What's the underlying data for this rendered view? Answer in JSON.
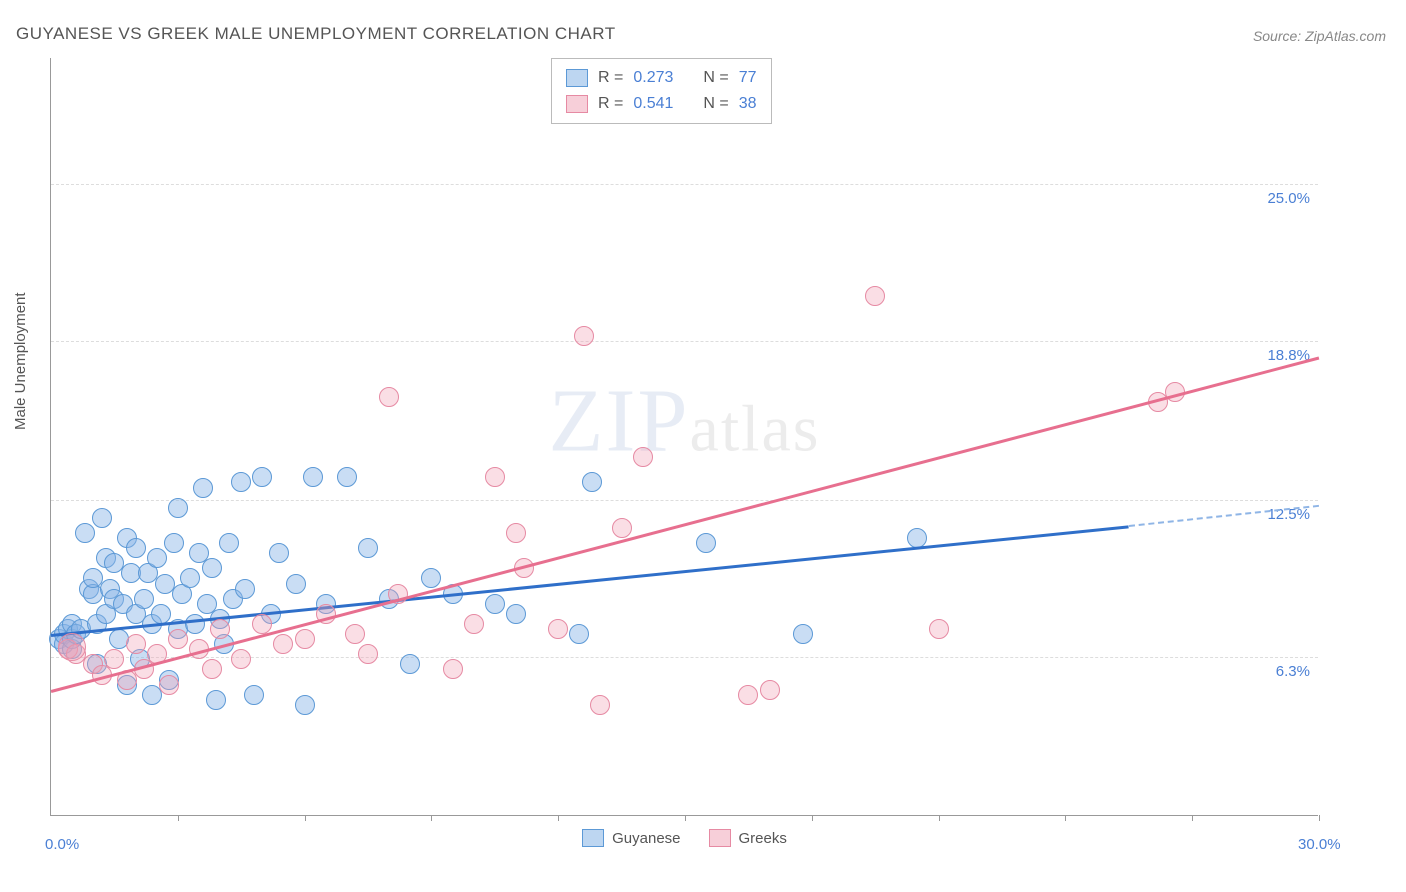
{
  "title": "GUYANESE VS GREEK MALE UNEMPLOYMENT CORRELATION CHART",
  "source_label": "Source:",
  "source_value": "ZipAtlas.com",
  "y_axis_label": "Male Unemployment",
  "watermark_zip": "ZIP",
  "watermark_atlas": "atlas",
  "chart": {
    "type": "scatter",
    "xlim": [
      0,
      30
    ],
    "ylim": [
      0,
      30
    ],
    "x_origin_label": "0.0%",
    "x_max_label": "30.0%",
    "x_ticks": [
      3,
      6,
      9,
      12,
      15,
      18,
      21,
      24,
      27,
      30
    ],
    "y_gridlines": [
      {
        "value": 6.3,
        "label": "6.3%"
      },
      {
        "value": 12.5,
        "label": "12.5%"
      },
      {
        "value": 18.8,
        "label": "18.8%"
      },
      {
        "value": 25.0,
        "label": "25.0%"
      }
    ],
    "background_color": "#ffffff",
    "grid_color": "#dddddd",
    "axis_color": "#999999",
    "tick_label_color": "#4a7fd4",
    "series": [
      {
        "name": "Guyanese",
        "color_fill": "rgba(135,180,230,0.45)",
        "color_stroke": "#5c99d6",
        "marker_size": 20,
        "r": 0.273,
        "n": 77,
        "trend": {
          "x1": 0,
          "y1": 7.2,
          "x2": 25.5,
          "y2": 11.5,
          "color": "#2f6fc9",
          "dashed_extension_to_x": 30,
          "dashed_y": 12.3
        },
        "points": [
          [
            0.2,
            7.0
          ],
          [
            0.3,
            6.8
          ],
          [
            0.3,
            7.2
          ],
          [
            0.4,
            7.4
          ],
          [
            0.5,
            6.6
          ],
          [
            0.5,
            7.0
          ],
          [
            0.5,
            7.6
          ],
          [
            0.6,
            7.2
          ],
          [
            0.7,
            7.4
          ],
          [
            0.8,
            11.2
          ],
          [
            0.9,
            9.0
          ],
          [
            1.0,
            8.8
          ],
          [
            1.0,
            9.4
          ],
          [
            1.1,
            7.6
          ],
          [
            1.1,
            6.0
          ],
          [
            1.2,
            11.8
          ],
          [
            1.3,
            8.0
          ],
          [
            1.3,
            10.2
          ],
          [
            1.4,
            9.0
          ],
          [
            1.5,
            8.6
          ],
          [
            1.5,
            10.0
          ],
          [
            1.6,
            7.0
          ],
          [
            1.7,
            8.4
          ],
          [
            1.8,
            11.0
          ],
          [
            1.8,
            5.2
          ],
          [
            1.9,
            9.6
          ],
          [
            2.0,
            8.0
          ],
          [
            2.0,
            10.6
          ],
          [
            2.1,
            6.2
          ],
          [
            2.2,
            8.6
          ],
          [
            2.3,
            9.6
          ],
          [
            2.4,
            4.8
          ],
          [
            2.4,
            7.6
          ],
          [
            2.5,
            10.2
          ],
          [
            2.6,
            8.0
          ],
          [
            2.7,
            9.2
          ],
          [
            2.8,
            5.4
          ],
          [
            2.9,
            10.8
          ],
          [
            3.0,
            12.2
          ],
          [
            3.0,
            7.4
          ],
          [
            3.1,
            8.8
          ],
          [
            3.3,
            9.4
          ],
          [
            3.4,
            7.6
          ],
          [
            3.5,
            10.4
          ],
          [
            3.6,
            13.0
          ],
          [
            3.7,
            8.4
          ],
          [
            3.8,
            9.8
          ],
          [
            3.9,
            4.6
          ],
          [
            4.0,
            7.8
          ],
          [
            4.1,
            6.8
          ],
          [
            4.2,
            10.8
          ],
          [
            4.3,
            8.6
          ],
          [
            4.5,
            13.2
          ],
          [
            4.6,
            9.0
          ],
          [
            4.8,
            4.8
          ],
          [
            5.0,
            13.4
          ],
          [
            5.2,
            8.0
          ],
          [
            5.4,
            10.4
          ],
          [
            5.8,
            9.2
          ],
          [
            6.0,
            4.4
          ],
          [
            6.2,
            13.4
          ],
          [
            6.5,
            8.4
          ],
          [
            7.0,
            13.4
          ],
          [
            7.5,
            10.6
          ],
          [
            8.0,
            8.6
          ],
          [
            8.5,
            6.0
          ],
          [
            9.0,
            9.4
          ],
          [
            9.5,
            8.8
          ],
          [
            10.5,
            8.4
          ],
          [
            11.0,
            8.0
          ],
          [
            12.5,
            7.2
          ],
          [
            12.8,
            13.2
          ],
          [
            15.5,
            10.8
          ],
          [
            17.8,
            7.2
          ],
          [
            20.5,
            11.0
          ]
        ]
      },
      {
        "name": "Greeks",
        "color_fill": "rgba(240,160,180,0.35)",
        "color_stroke": "#e68aa3",
        "marker_size": 20,
        "r": 0.541,
        "n": 38,
        "trend": {
          "x1": 0,
          "y1": 5.0,
          "x2": 30,
          "y2": 18.2,
          "color": "#e76f8f"
        },
        "points": [
          [
            0.4,
            6.6
          ],
          [
            0.6,
            6.4
          ],
          [
            1.0,
            6.0
          ],
          [
            1.2,
            5.6
          ],
          [
            1.5,
            6.2
          ],
          [
            1.8,
            5.4
          ],
          [
            2.0,
            6.8
          ],
          [
            2.2,
            5.8
          ],
          [
            2.5,
            6.4
          ],
          [
            2.8,
            5.2
          ],
          [
            3.0,
            7.0
          ],
          [
            3.5,
            6.6
          ],
          [
            3.8,
            5.8
          ],
          [
            4.0,
            7.4
          ],
          [
            4.5,
            6.2
          ],
          [
            5.0,
            7.6
          ],
          [
            5.5,
            6.8
          ],
          [
            6.0,
            7.0
          ],
          [
            6.5,
            8.0
          ],
          [
            7.2,
            7.2
          ],
          [
            7.5,
            6.4
          ],
          [
            8.0,
            16.6
          ],
          [
            8.2,
            8.8
          ],
          [
            9.5,
            5.8
          ],
          [
            10.0,
            7.6
          ],
          [
            10.5,
            13.4
          ],
          [
            11.0,
            11.2
          ],
          [
            11.2,
            9.8
          ],
          [
            12.0,
            7.4
          ],
          [
            12.6,
            19.0
          ],
          [
            13.0,
            4.4
          ],
          [
            13.5,
            11.4
          ],
          [
            14.0,
            14.2
          ],
          [
            16.5,
            4.8
          ],
          [
            17.0,
            5.0
          ],
          [
            19.5,
            20.6
          ],
          [
            21.0,
            7.4
          ],
          [
            26.2,
            16.4
          ],
          [
            26.6,
            16.8
          ]
        ],
        "big_points": [
          [
            0.5,
            6.7
          ]
        ]
      }
    ],
    "legend_bottom": [
      {
        "swatch": "blue",
        "label": "Guyanese"
      },
      {
        "swatch": "pink",
        "label": "Greeks"
      }
    ],
    "legend_box": {
      "rows": [
        {
          "swatch": "blue",
          "r_label": "R =",
          "r_value": "0.273",
          "n_label": "N =",
          "n_value": "77"
        },
        {
          "swatch": "pink",
          "r_label": "R =",
          "r_value": "0.541",
          "n_label": "N =",
          "n_value": "38"
        }
      ]
    }
  },
  "colors": {
    "title": "#555555",
    "source": "#888888",
    "blue_line": "#2f6fc9",
    "pink_line": "#e76f8f"
  }
}
